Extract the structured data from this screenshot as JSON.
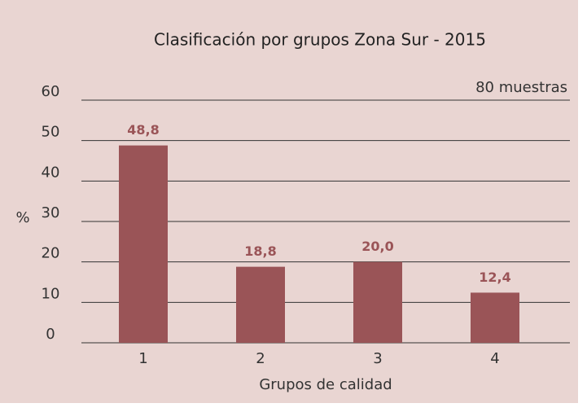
{
  "chart_data": {
    "type": "bar",
    "title": "Clasificación por grupos Zona Sur - 2015",
    "annotation": "80 muestras",
    "ylabel": "%",
    "xlabel": "Grupos de calidad",
    "categories": [
      "1",
      "2",
      "3",
      "4"
    ],
    "values": [
      48.8,
      18.8,
      20.0,
      12.4
    ],
    "value_labels": [
      "48,8",
      "18,8",
      "20,0",
      "12,4"
    ],
    "color": "#9a5457",
    "ylim": [
      0,
      60
    ],
    "yticks": [
      0,
      10,
      20,
      30,
      40,
      50,
      60
    ],
    "grid": true
  }
}
